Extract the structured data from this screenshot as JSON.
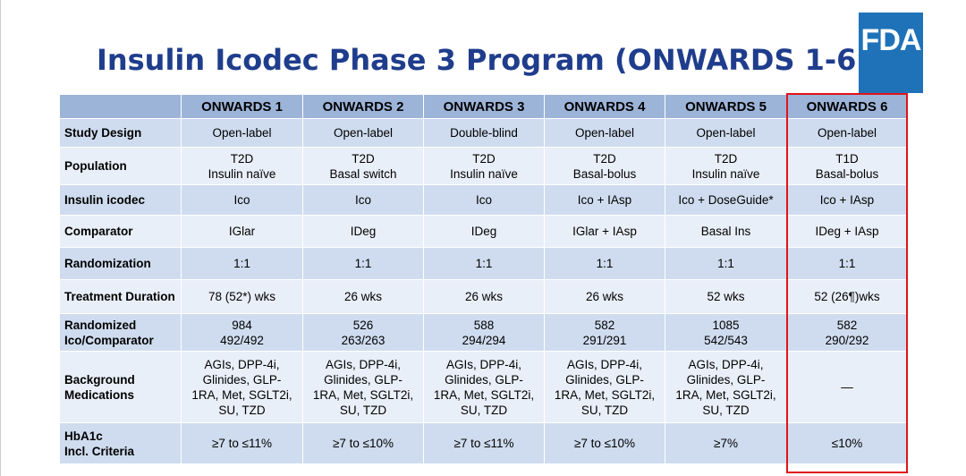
{
  "title": "Insulin Icodec Phase 3 Program (ONWARDS 1-6)",
  "logo_text": "FDA",
  "columns": [
    "",
    "ONWARDS 1",
    "ONWARDS 2",
    "ONWARDS 3",
    "ONWARDS 4",
    "ONWARDS 5",
    "ONWARDS 6"
  ],
  "rows": [
    {
      "label": [
        "Study Design"
      ],
      "cells": [
        [
          "Open-label"
        ],
        [
          "Open-label"
        ],
        [
          "Double-blind"
        ],
        [
          "Open-label"
        ],
        [
          "Open-label"
        ],
        [
          "Open-label"
        ]
      ]
    },
    {
      "label": [
        "Population"
      ],
      "cells": [
        [
          "T2D",
          "Insulin naïve"
        ],
        [
          "T2D",
          "Basal switch"
        ],
        [
          "T2D",
          "Insulin naïve"
        ],
        [
          "T2D",
          "Basal-bolus"
        ],
        [
          "T2D",
          "Insulin naïve"
        ],
        [
          "T1D",
          "Basal-bolus"
        ]
      ]
    },
    {
      "label": [
        "Insulin icodec"
      ],
      "cells": [
        [
          "Ico"
        ],
        [
          "Ico"
        ],
        [
          "Ico"
        ],
        [
          "Ico + IAsp"
        ],
        [
          "Ico + DoseGuide*"
        ],
        [
          "Ico + IAsp"
        ]
      ]
    },
    {
      "label": [
        "Comparator"
      ],
      "cells": [
        [
          "IGlar"
        ],
        [
          "IDeg"
        ],
        [
          "IDeg"
        ],
        [
          "IGlar + IAsp"
        ],
        [
          "Basal Ins"
        ],
        [
          "IDeg + IAsp"
        ]
      ]
    },
    {
      "label": [
        "Randomization"
      ],
      "cells": [
        [
          "1:1"
        ],
        [
          "1:1"
        ],
        [
          "1:1"
        ],
        [
          "1:1"
        ],
        [
          "1:1"
        ],
        [
          "1:1"
        ]
      ]
    },
    {
      "label": [
        "Treatment Duration"
      ],
      "cells": [
        [
          "78 (52*) wks"
        ],
        [
          "26 wks"
        ],
        [
          "26 wks"
        ],
        [
          "26 wks"
        ],
        [
          "52 wks"
        ],
        [
          "52 (26¶)wks"
        ]
      ]
    },
    {
      "label": [
        "Randomized",
        "Ico/Comparator"
      ],
      "cells": [
        [
          "984",
          "492/492"
        ],
        [
          "526",
          "263/263"
        ],
        [
          "588",
          "294/294"
        ],
        [
          "582",
          "291/291"
        ],
        [
          "1085",
          "542/543"
        ],
        [
          "582",
          "290/292"
        ]
      ]
    },
    {
      "label": [
        "Background",
        "Medications"
      ],
      "cells": [
        [
          "AGIs, DPP-4i,",
          "Glinides, GLP-",
          "1RA, Met, SGLT2i,",
          "SU, TZD"
        ],
        [
          "AGIs, DPP-4i,",
          "Glinides, GLP-",
          "1RA, Met, SGLT2i,",
          "SU, TZD"
        ],
        [
          "AGIs, DPP-4i,",
          "Glinides, GLP-",
          "1RA, Met, SGLT2i,",
          "SU, TZD"
        ],
        [
          "AGIs, DPP-4i,",
          "Glinides, GLP-",
          "1RA, Met, SGLT2i,",
          "SU, TZD"
        ],
        [
          "AGIs, DPP-4i,",
          "Glinides, GLP-",
          "1RA, Met, SGLT2i,",
          "SU, TZD"
        ],
        [
          "—"
        ]
      ]
    },
    {
      "label": [
        "HbA1c",
        "Incl. Criteria"
      ],
      "cells": [
        [
          "≥7 to ≤11%"
        ],
        [
          "≥7 to ≤10%"
        ],
        [
          "≥7 to ≤11%"
        ],
        [
          "≥7 to ≤10%"
        ],
        [
          "≥7%"
        ],
        [
          "≤10%"
        ]
      ]
    }
  ],
  "highlight_color": "#e0141a"
}
